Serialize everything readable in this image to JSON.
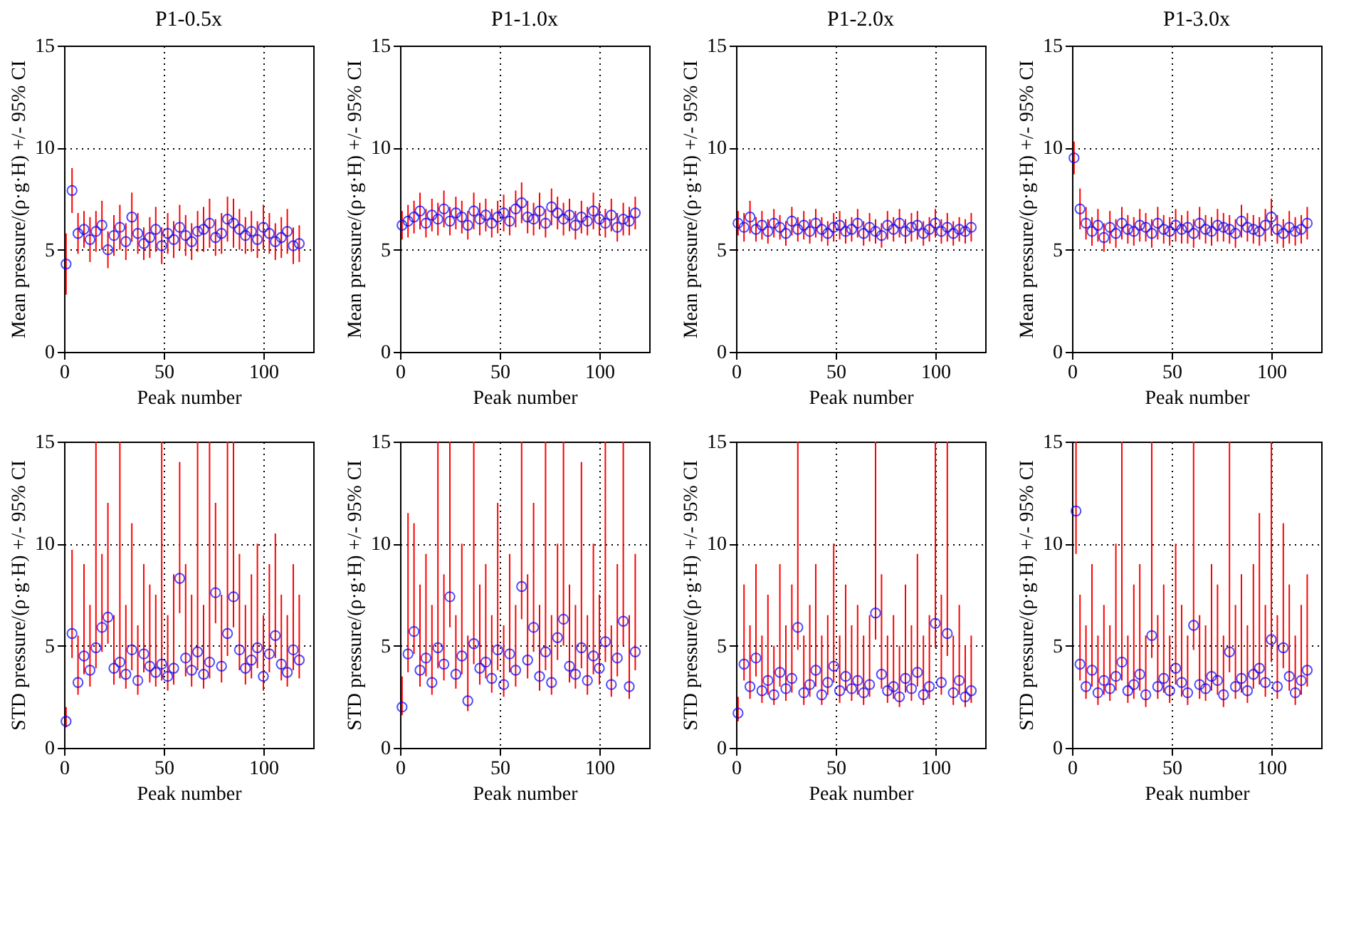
{
  "chart_data": [
    {
      "type": "scatter",
      "title": "P1-0.5x",
      "xlabel": "Peak number",
      "ylabel": "Mean pressure/(ρ·g·H) +/- 95% CI",
      "marker": "circle",
      "grid": true,
      "xlim": [
        0,
        125
      ],
      "xticks": [
        0,
        50,
        100
      ],
      "ylim": [
        0,
        15
      ],
      "yticks": [
        0,
        5,
        10,
        15
      ],
      "x": [
        1,
        4,
        7,
        10,
        13,
        16,
        19,
        22,
        25,
        28,
        31,
        34,
        37,
        40,
        43,
        46,
        49,
        52,
        55,
        58,
        61,
        64,
        67,
        70,
        73,
        76,
        79,
        82,
        85,
        88,
        91,
        94,
        97,
        100,
        103,
        106,
        109,
        112,
        115,
        118
      ],
      "series": [
        {
          "color": "#0000ff",
          "values": [
            4.3,
            7.9,
            5.8,
            6.0,
            5.5,
            5.9,
            6.2,
            5.0,
            5.7,
            6.1,
            5.4,
            6.6,
            5.8,
            5.3,
            5.6,
            6.0,
            5.2,
            5.8,
            5.5,
            6.1,
            5.7,
            5.4,
            5.9,
            6.0,
            6.3,
            5.6,
            5.8,
            6.5,
            6.3,
            6.0,
            5.7,
            5.9,
            5.5,
            6.1,
            5.8,
            5.4,
            5.6,
            5.9,
            5.2,
            5.3
          ],
          "errors": [
            1.5,
            1.1,
            1.0,
            0.9,
            1.1,
            1.0,
            1.2,
            0.9,
            1.0,
            1.1,
            0.9,
            1.2,
            1.0,
            0.8,
            1.0,
            1.1,
            0.9,
            1.0,
            0.9,
            1.1,
            1.0,
            0.9,
            1.0,
            1.1,
            1.2,
            0.9,
            1.0,
            1.1,
            1.2,
            1.0,
            0.9,
            1.0,
            0.9,
            1.1,
            1.0,
            0.9,
            1.0,
            1.1,
            0.9,
            0.9
          ]
        }
      ]
    },
    {
      "type": "scatter",
      "title": "P1-1.0x",
      "xlabel": "Peak number",
      "ylabel": "Mean pressure/(ρ·g·H) +/- 95% CI",
      "marker": "circle",
      "grid": true,
      "xlim": [
        0,
        125
      ],
      "xticks": [
        0,
        50,
        100
      ],
      "ylim": [
        0,
        15
      ],
      "yticks": [
        0,
        5,
        10,
        15
      ],
      "x": [
        1,
        4,
        7,
        10,
        13,
        16,
        19,
        22,
        25,
        28,
        31,
        34,
        37,
        40,
        43,
        46,
        49,
        52,
        55,
        58,
        61,
        64,
        67,
        70,
        73,
        76,
        79,
        82,
        85,
        88,
        91,
        94,
        97,
        100,
        103,
        106,
        109,
        112,
        115,
        118
      ],
      "series": [
        {
          "color": "#0000ff",
          "values": [
            6.2,
            6.4,
            6.6,
            6.9,
            6.3,
            6.7,
            6.5,
            7.0,
            6.4,
            6.8,
            6.6,
            6.2,
            6.9,
            6.5,
            6.7,
            6.3,
            6.6,
            6.8,
            6.4,
            7.0,
            7.3,
            6.6,
            6.5,
            6.9,
            6.3,
            7.1,
            6.8,
            6.5,
            6.7,
            6.2,
            6.6,
            6.4,
            6.9,
            6.5,
            6.3,
            6.7,
            6.1,
            6.5,
            6.4,
            6.8
          ],
          "errors": [
            0.7,
            0.8,
            0.8,
            0.9,
            0.7,
            0.8,
            0.8,
            0.9,
            0.7,
            0.8,
            0.8,
            0.7,
            0.9,
            0.8,
            0.8,
            0.7,
            0.8,
            0.9,
            0.7,
            0.9,
            1.0,
            0.8,
            0.8,
            0.9,
            0.7,
            0.9,
            0.8,
            0.8,
            0.8,
            0.7,
            0.8,
            0.7,
            0.9,
            0.8,
            0.7,
            0.8,
            0.7,
            0.8,
            0.7,
            0.8
          ]
        }
      ]
    },
    {
      "type": "scatter",
      "title": "P1-2.0x",
      "xlabel": "Peak number",
      "ylabel": "Mean pressure/(ρ·g·H) +/- 95% CI",
      "marker": "circle",
      "grid": true,
      "xlim": [
        0,
        125
      ],
      "xticks": [
        0,
        50,
        100
      ],
      "ylim": [
        0,
        15
      ],
      "yticks": [
        0,
        5,
        10,
        15
      ],
      "x": [
        1,
        4,
        7,
        10,
        13,
        16,
        19,
        22,
        25,
        28,
        31,
        34,
        37,
        40,
        43,
        46,
        49,
        52,
        55,
        58,
        61,
        64,
        67,
        70,
        73,
        76,
        79,
        82,
        85,
        88,
        91,
        94,
        97,
        100,
        103,
        106,
        109,
        112,
        115,
        118
      ],
      "series": [
        {
          "color": "#0000ff",
          "values": [
            6.3,
            6.1,
            6.6,
            6.0,
            6.2,
            5.9,
            6.3,
            6.1,
            5.8,
            6.4,
            6.0,
            6.2,
            5.9,
            6.3,
            6.0,
            5.8,
            6.1,
            6.2,
            5.9,
            6.0,
            6.3,
            5.8,
            6.1,
            5.9,
            5.7,
            6.2,
            6.0,
            6.3,
            5.9,
            6.1,
            6.2,
            5.8,
            6.0,
            6.3,
            5.9,
            6.1,
            5.8,
            6.0,
            5.9,
            6.1
          ],
          "errors": [
            0.6,
            0.7,
            0.8,
            0.6,
            0.7,
            0.6,
            0.7,
            0.6,
            0.6,
            0.7,
            0.6,
            0.7,
            0.6,
            0.7,
            0.6,
            0.6,
            0.7,
            0.7,
            0.6,
            0.6,
            0.7,
            0.6,
            0.7,
            0.6,
            0.6,
            0.7,
            0.6,
            0.7,
            0.6,
            0.7,
            0.7,
            0.6,
            0.6,
            0.7,
            0.6,
            0.7,
            0.6,
            0.6,
            0.6,
            0.7
          ]
        }
      ]
    },
    {
      "type": "scatter",
      "title": "P1-3.0x",
      "xlabel": "Peak number",
      "ylabel": "Mean pressure/(ρ·g·H) +/- 95% CI",
      "marker": "circle",
      "grid": true,
      "xlim": [
        0,
        125
      ],
      "xticks": [
        0,
        50,
        100
      ],
      "ylim": [
        0,
        15
      ],
      "yticks": [
        0,
        5,
        10,
        15
      ],
      "x": [
        1,
        4,
        7,
        10,
        13,
        16,
        19,
        22,
        25,
        28,
        31,
        34,
        37,
        40,
        43,
        46,
        49,
        52,
        55,
        58,
        61,
        64,
        67,
        70,
        73,
        76,
        79,
        82,
        85,
        88,
        91,
        94,
        97,
        100,
        103,
        106,
        109,
        112,
        115,
        118
      ],
      "series": [
        {
          "color": "#0000ff",
          "values": [
            9.5,
            7.0,
            6.3,
            5.9,
            6.2,
            5.6,
            6.1,
            5.8,
            6.3,
            6.0,
            5.9,
            6.2,
            6.1,
            5.8,
            6.3,
            6.0,
            5.9,
            6.2,
            6.0,
            6.1,
            5.8,
            6.3,
            6.0,
            5.9,
            6.2,
            6.1,
            6.0,
            5.8,
            6.4,
            6.1,
            6.0,
            5.9,
            6.2,
            6.6,
            6.0,
            5.8,
            6.1,
            5.9,
            6.0,
            6.3
          ],
          "errors": [
            0.8,
            1.0,
            0.8,
            0.7,
            0.8,
            0.7,
            0.8,
            0.7,
            0.8,
            0.7,
            0.7,
            0.8,
            0.7,
            0.7,
            0.8,
            0.7,
            0.7,
            0.8,
            0.7,
            0.8,
            0.7,
            0.8,
            0.7,
            0.7,
            0.8,
            0.7,
            0.7,
            0.7,
            0.8,
            0.7,
            0.7,
            0.7,
            0.8,
            0.9,
            0.7,
            0.7,
            0.8,
            0.7,
            0.7,
            0.8
          ]
        }
      ]
    },
    {
      "type": "scatter",
      "xlabel": "Peak number",
      "ylabel": "STD pressure/(ρ·g·H) +/- 95% CI",
      "marker": "circle",
      "grid": true,
      "xlim": [
        0,
        125
      ],
      "xticks": [
        0,
        50,
        100
      ],
      "ylim": [
        0,
        15
      ],
      "yticks": [
        0,
        5,
        10,
        15
      ],
      "x": [
        1,
        4,
        7,
        10,
        13,
        16,
        19,
        22,
        25,
        28,
        31,
        34,
        37,
        40,
        43,
        46,
        49,
        52,
        55,
        58,
        61,
        64,
        67,
        70,
        73,
        76,
        79,
        82,
        85,
        88,
        91,
        94,
        97,
        100,
        103,
        106,
        109,
        112,
        115,
        118
      ],
      "series": [
        {
          "color": "#0000ff",
          "values": [
            1.3,
            5.6,
            3.2,
            4.5,
            3.8,
            4.9,
            5.9,
            6.4,
            3.9,
            4.2,
            3.6,
            4.8,
            3.3,
            4.6,
            4.0,
            3.7,
            4.1,
            3.5,
            3.9,
            8.3,
            4.4,
            3.8,
            4.7,
            3.6,
            4.2,
            7.6,
            4.0,
            5.6,
            7.4,
            4.8,
            3.9,
            4.3,
            4.9,
            3.5,
            4.6,
            5.5,
            4.1,
            3.7,
            4.8,
            4.3
          ],
          "errors": [
            [
              1.0,
              2.0
            ],
            [
              4.4,
              9.7
            ],
            [
              2.6,
              5.5
            ],
            [
              3.6,
              9.0
            ],
            [
              3.0,
              7.0
            ],
            [
              3.9,
              15
            ],
            [
              4.7,
              9.5
            ],
            [
              5.1,
              12
            ],
            [
              3.1,
              6.5
            ],
            [
              3.4,
              15
            ],
            [
              2.9,
              7.0
            ],
            [
              3.8,
              11
            ],
            [
              2.6,
              6.0
            ],
            [
              3.7,
              9.0
            ],
            [
              3.2,
              8.0
            ],
            [
              3.0,
              7.5
            ],
            [
              3.3,
              15
            ],
            [
              2.8,
              6.5
            ],
            [
              3.1,
              8.5
            ],
            [
              6.6,
              14
            ],
            [
              3.5,
              9.0
            ],
            [
              3.0,
              7.5
            ],
            [
              3.8,
              15
            ],
            [
              2.9,
              7.0
            ],
            [
              3.4,
              15
            ],
            [
              6.1,
              12
            ],
            [
              3.2,
              7.5
            ],
            [
              4.5,
              15
            ],
            [
              5.9,
              15
            ],
            [
              3.8,
              9.5
            ],
            [
              3.1,
              7.0
            ],
            [
              3.4,
              8.5
            ],
            [
              3.9,
              10
            ],
            [
              2.8,
              6.5
            ],
            [
              3.7,
              9.0
            ],
            [
              4.4,
              10.5
            ],
            [
              3.3,
              7.5
            ],
            [
              3.0,
              6.5
            ],
            [
              3.8,
              9.0
            ],
            [
              3.4,
              7.5
            ]
          ]
        }
      ]
    },
    {
      "type": "scatter",
      "xlabel": "Peak number",
      "ylabel": "STD pressure/(ρ·g·H) +/- 95% CI",
      "marker": "circle",
      "grid": true,
      "xlim": [
        0,
        125
      ],
      "xticks": [
        0,
        50,
        100
      ],
      "ylim": [
        0,
        15
      ],
      "yticks": [
        0,
        5,
        10,
        15
      ],
      "x": [
        1,
        4,
        7,
        10,
        13,
        16,
        19,
        22,
        25,
        28,
        31,
        34,
        37,
        40,
        43,
        46,
        49,
        52,
        55,
        58,
        61,
        64,
        67,
        70,
        73,
        76,
        79,
        82,
        85,
        88,
        91,
        94,
        97,
        100,
        103,
        106,
        109,
        112,
        115,
        118
      ],
      "series": [
        {
          "color": "#0000ff",
          "values": [
            2.0,
            4.6,
            5.7,
            3.8,
            4.4,
            3.2,
            4.9,
            4.1,
            7.4,
            3.6,
            4.5,
            2.3,
            5.1,
            3.9,
            4.2,
            3.4,
            4.8,
            3.1,
            4.6,
            3.8,
            7.9,
            4.3,
            5.9,
            3.5,
            4.7,
            3.2,
            5.4,
            6.3,
            4.0,
            3.6,
            4.9,
            3.3,
            4.5,
            3.9,
            5.2,
            3.1,
            4.4,
            6.2,
            3.0,
            4.7
          ],
          "errors": [
            [
              1.6,
              3.5
            ],
            [
              3.7,
              11.5
            ],
            [
              4.6,
              11
            ],
            [
              3.0,
              8
            ],
            [
              3.5,
              9.5
            ],
            [
              2.6,
              7
            ],
            [
              3.9,
              15
            ],
            [
              3.3,
              8.5
            ],
            [
              5.9,
              15
            ],
            [
              2.9,
              6.5
            ],
            [
              3.6,
              10
            ],
            [
              1.8,
              5.5
            ],
            [
              4.1,
              15
            ],
            [
              3.1,
              8
            ],
            [
              3.4,
              9
            ],
            [
              2.7,
              6.5
            ],
            [
              3.8,
              12
            ],
            [
              2.5,
              6
            ],
            [
              3.7,
              9.5
            ],
            [
              3.0,
              7
            ],
            [
              6.3,
              15
            ],
            [
              3.4,
              8.5
            ],
            [
              4.7,
              12
            ],
            [
              2.8,
              7
            ],
            [
              3.8,
              15
            ],
            [
              2.6,
              6.5
            ],
            [
              4.3,
              10
            ],
            [
              5.0,
              15
            ],
            [
              3.2,
              8
            ],
            [
              2.9,
              7
            ],
            [
              3.9,
              14
            ],
            [
              2.6,
              6.5
            ],
            [
              3.6,
              10
            ],
            [
              3.1,
              7.5
            ],
            [
              4.2,
              15
            ],
            [
              2.5,
              6
            ],
            [
              3.5,
              9
            ],
            [
              5.0,
              15
            ],
            [
              2.4,
              6.5
            ],
            [
              3.8,
              9.5
            ]
          ]
        }
      ]
    },
    {
      "type": "scatter",
      "xlabel": "Peak number",
      "ylabel": "STD pressure/(ρ·g·H) +/- 95% CI",
      "marker": "circle",
      "grid": true,
      "xlim": [
        0,
        125
      ],
      "xticks": [
        0,
        50,
        100
      ],
      "ylim": [
        0,
        15
      ],
      "yticks": [
        0,
        5,
        10,
        15
      ],
      "x": [
        1,
        4,
        7,
        10,
        13,
        16,
        19,
        22,
        25,
        28,
        31,
        34,
        37,
        40,
        43,
        46,
        49,
        52,
        55,
        58,
        61,
        64,
        67,
        70,
        73,
        76,
        79,
        82,
        85,
        88,
        91,
        94,
        97,
        100,
        103,
        106,
        109,
        112,
        115,
        118
      ],
      "series": [
        {
          "color": "#0000ff",
          "values": [
            1.7,
            4.1,
            3.0,
            4.4,
            2.8,
            3.3,
            2.6,
            3.7,
            2.9,
            3.4,
            5.9,
            2.7,
            3.1,
            3.8,
            2.6,
            3.2,
            4.0,
            2.8,
            3.5,
            2.9,
            3.3,
            2.7,
            3.1,
            6.6,
            3.6,
            2.8,
            3.0,
            2.5,
            3.4,
            2.9,
            3.7,
            2.6,
            3.0,
            6.1,
            3.2,
            5.6,
            2.7,
            3.3,
            2.5,
            2.8
          ],
          "errors": [
            [
              1.3,
              2.5
            ],
            [
              3.3,
              8
            ],
            [
              2.4,
              6
            ],
            [
              3.5,
              9
            ],
            [
              2.2,
              5.5
            ],
            [
              2.6,
              7.5
            ],
            [
              2.1,
              5
            ],
            [
              3.0,
              9
            ],
            [
              2.3,
              6
            ],
            [
              2.7,
              8
            ],
            [
              4.8,
              15
            ],
            [
              2.1,
              5.5
            ],
            [
              2.5,
              7
            ],
            [
              3.0,
              9
            ],
            [
              2.1,
              5.5
            ],
            [
              2.6,
              6.5
            ],
            [
              3.2,
              10
            ],
            [
              2.2,
              5.5
            ],
            [
              2.8,
              8
            ],
            [
              2.3,
              6
            ],
            [
              2.6,
              7
            ],
            [
              2.1,
              5.5
            ],
            [
              2.5,
              6.5
            ],
            [
              5.3,
              15
            ],
            [
              2.9,
              8.5
            ],
            [
              2.2,
              5.5
            ],
            [
              2.4,
              6.5
            ],
            [
              2.0,
              5
            ],
            [
              2.7,
              8
            ],
            [
              2.3,
              6
            ],
            [
              3.0,
              9.5
            ],
            [
              2.1,
              5.5
            ],
            [
              2.4,
              6.5
            ],
            [
              4.9,
              15
            ],
            [
              2.6,
              7.5
            ],
            [
              4.5,
              15
            ],
            [
              2.1,
              5.5
            ],
            [
              2.6,
              7
            ],
            [
              2.0,
              5
            ],
            [
              2.2,
              5.5
            ]
          ]
        }
      ]
    },
    {
      "type": "scatter",
      "xlabel": "Peak number",
      "ylabel": "STD pressure/(ρ·g·H) +/- 95% CI",
      "marker": "circle",
      "grid": true,
      "xlim": [
        0,
        125
      ],
      "xticks": [
        0,
        50,
        100
      ],
      "ylim": [
        0,
        15
      ],
      "yticks": [
        0,
        5,
        10,
        15
      ],
      "x": [
        2,
        4,
        7,
        10,
        13,
        16,
        19,
        22,
        25,
        28,
        31,
        34,
        37,
        40,
        43,
        46,
        49,
        52,
        55,
        58,
        61,
        64,
        67,
        70,
        73,
        76,
        79,
        82,
        85,
        88,
        91,
        94,
        97,
        100,
        103,
        106,
        109,
        112,
        115,
        118
      ],
      "series": [
        {
          "color": "#0000ff",
          "values": [
            11.6,
            4.1,
            3.0,
            3.8,
            2.7,
            3.3,
            2.9,
            3.5,
            4.2,
            2.8,
            3.1,
            3.6,
            2.6,
            5.5,
            3.0,
            3.4,
            2.8,
            3.9,
            3.2,
            2.7,
            6.0,
            3.1,
            2.9,
            3.5,
            3.3,
            2.6,
            4.7,
            3.0,
            3.4,
            2.8,
            3.6,
            3.9,
            3.2,
            5.3,
            3.0,
            4.9,
            3.5,
            2.7,
            3.3,
            3.8
          ],
          "errors": [
            [
              9.5,
              15
            ],
            [
              3.3,
              7.5
            ],
            [
              2.4,
              6
            ],
            [
              3.0,
              9
            ],
            [
              2.1,
              5.5
            ],
            [
              2.6,
              7
            ],
            [
              2.3,
              6
            ],
            [
              2.8,
              10
            ],
            [
              3.3,
              15
            ],
            [
              2.2,
              5.5
            ],
            [
              2.4,
              8
            ],
            [
              2.8,
              9
            ],
            [
              2.0,
              5.5
            ],
            [
              4.4,
              15
            ],
            [
              2.4,
              6.5
            ],
            [
              2.7,
              8
            ],
            [
              2.2,
              5.5
            ],
            [
              3.1,
              10
            ],
            [
              2.5,
              7
            ],
            [
              2.1,
              5.5
            ],
            [
              4.8,
              15
            ],
            [
              2.4,
              6.5
            ],
            [
              2.3,
              6
            ],
            [
              2.8,
              9
            ],
            [
              2.6,
              8
            ],
            [
              2.0,
              5.5
            ],
            [
              3.7,
              15
            ],
            [
              2.4,
              7
            ],
            [
              2.7,
              8.5
            ],
            [
              2.2,
              6
            ],
            [
              2.9,
              9
            ],
            [
              3.1,
              11.5
            ],
            [
              2.5,
              7
            ],
            [
              4.2,
              15
            ],
            [
              2.4,
              6.5
            ],
            [
              3.9,
              11
            ],
            [
              2.8,
              8
            ],
            [
              2.1,
              5.5
            ],
            [
              2.6,
              7
            ],
            [
              3.0,
              8.5
            ]
          ]
        }
      ]
    }
  ]
}
